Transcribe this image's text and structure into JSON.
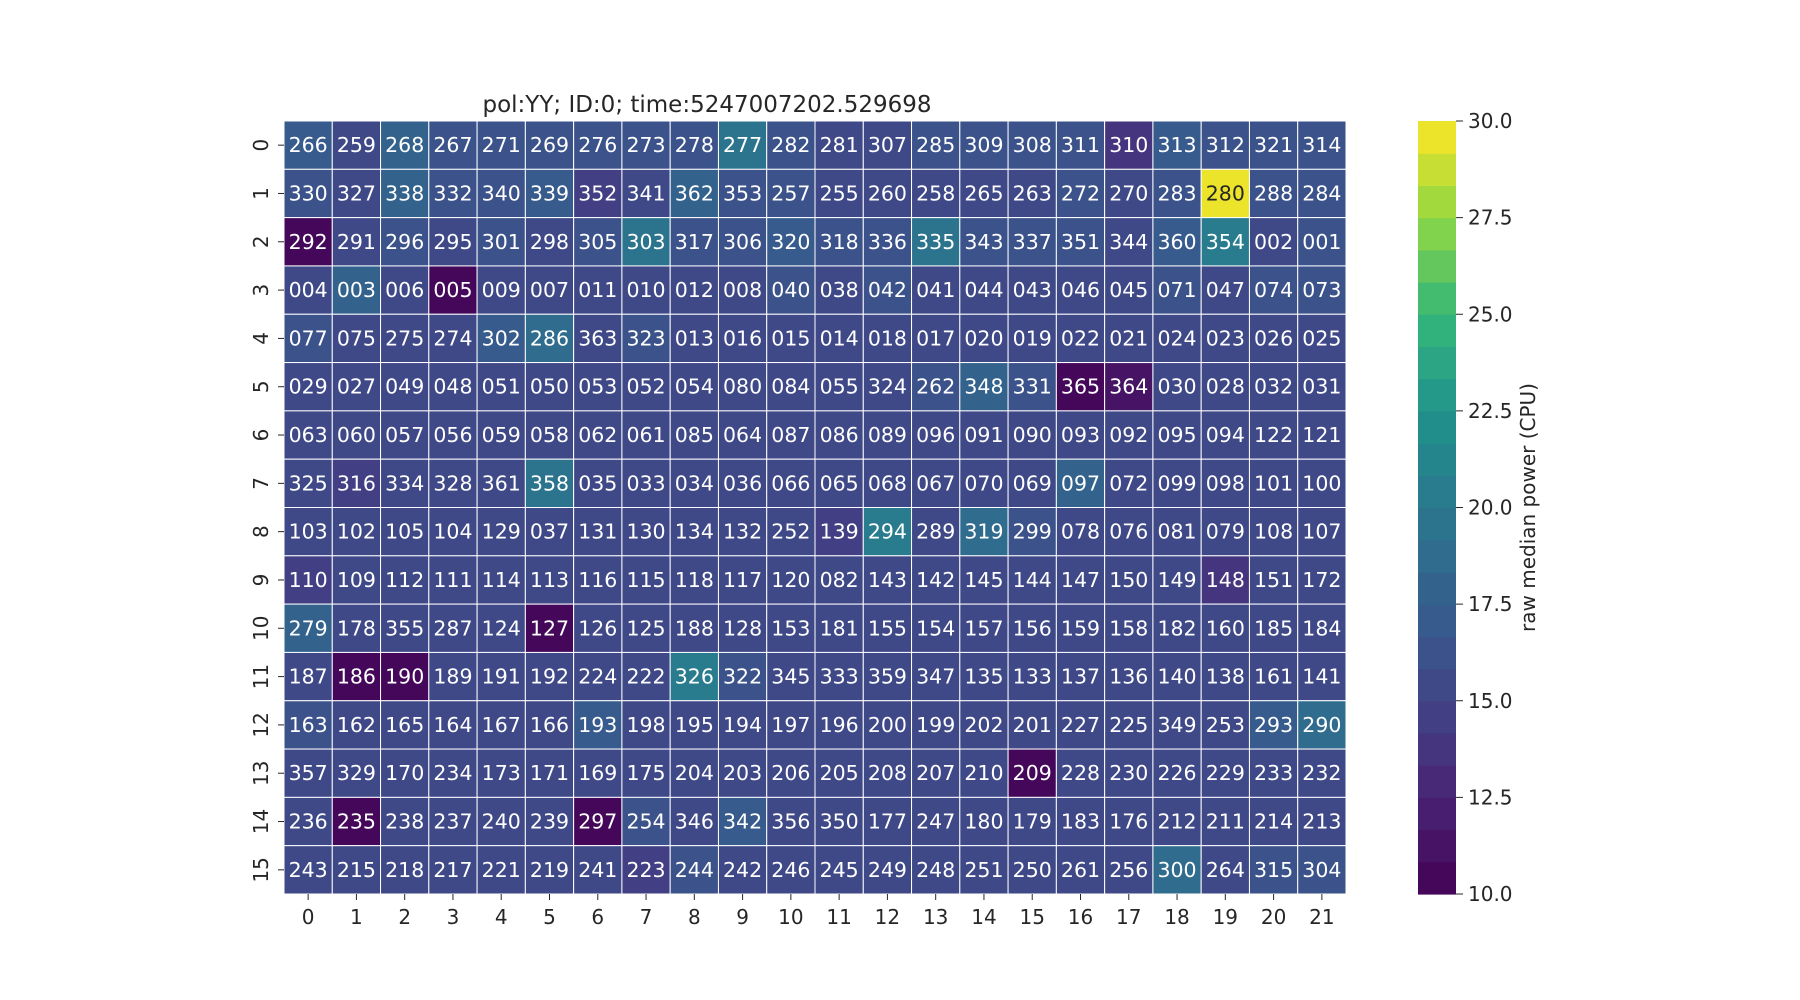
{
  "chart_data": {
    "type": "heatmap",
    "title": "pol:YY; ID:0; time:5247007202.529698",
    "colormap": "viridis",
    "x_categories": [
      "0",
      "1",
      "2",
      "3",
      "4",
      "5",
      "6",
      "7",
      "8",
      "9",
      "10",
      "11",
      "12",
      "13",
      "14",
      "15",
      "16",
      "17",
      "18",
      "19",
      "20",
      "21"
    ],
    "y_categories": [
      "0",
      "1",
      "2",
      "3",
      "4",
      "5",
      "6",
      "7",
      "8",
      "9",
      "10",
      "11",
      "12",
      "13",
      "14",
      "15"
    ],
    "labels": [
      [
        "266",
        "259",
        "268",
        "267",
        "271",
        "269",
        "276",
        "273",
        "278",
        "277",
        "282",
        "281",
        "307",
        "285",
        "309",
        "308",
        "311",
        "310",
        "313",
        "312",
        "321",
        "314"
      ],
      [
        "330",
        "327",
        "338",
        "332",
        "340",
        "339",
        "352",
        "341",
        "362",
        "353",
        "257",
        "255",
        "260",
        "258",
        "265",
        "263",
        "272",
        "270",
        "283",
        "280",
        "288",
        "284"
      ],
      [
        "292",
        "291",
        "296",
        "295",
        "301",
        "298",
        "305",
        "303",
        "317",
        "306",
        "320",
        "318",
        "336",
        "335",
        "343",
        "337",
        "351",
        "344",
        "360",
        "354",
        "002",
        "001"
      ],
      [
        "004",
        "003",
        "006",
        "005",
        "009",
        "007",
        "011",
        "010",
        "012",
        "008",
        "040",
        "038",
        "042",
        "041",
        "044",
        "043",
        "046",
        "045",
        "071",
        "047",
        "074",
        "073"
      ],
      [
        "077",
        "075",
        "275",
        "274",
        "302",
        "286",
        "363",
        "323",
        "013",
        "016",
        "015",
        "014",
        "018",
        "017",
        "020",
        "019",
        "022",
        "021",
        "024",
        "023",
        "026",
        "025"
      ],
      [
        "029",
        "027",
        "049",
        "048",
        "051",
        "050",
        "053",
        "052",
        "054",
        "080",
        "084",
        "055",
        "324",
        "262",
        "348",
        "331",
        "365",
        "364",
        "030",
        "028",
        "032",
        "031"
      ],
      [
        "063",
        "060",
        "057",
        "056",
        "059",
        "058",
        "062",
        "061",
        "085",
        "064",
        "087",
        "086",
        "089",
        "096",
        "091",
        "090",
        "093",
        "092",
        "095",
        "094",
        "122",
        "121"
      ],
      [
        "325",
        "316",
        "334",
        "328",
        "361",
        "358",
        "035",
        "033",
        "034",
        "036",
        "066",
        "065",
        "068",
        "067",
        "070",
        "069",
        "097",
        "072",
        "099",
        "098",
        "101",
        "100"
      ],
      [
        "103",
        "102",
        "105",
        "104",
        "129",
        "037",
        "131",
        "130",
        "134",
        "132",
        "252",
        "139",
        "294",
        "289",
        "319",
        "299",
        "078",
        "076",
        "081",
        "079",
        "108",
        "107"
      ],
      [
        "110",
        "109",
        "112",
        "111",
        "114",
        "113",
        "116",
        "115",
        "118",
        "117",
        "120",
        "082",
        "143",
        "142",
        "145",
        "144",
        "147",
        "150",
        "149",
        "148",
        "151",
        "172"
      ],
      [
        "279",
        "178",
        "355",
        "287",
        "124",
        "127",
        "126",
        "125",
        "188",
        "128",
        "153",
        "181",
        "155",
        "154",
        "157",
        "156",
        "159",
        "158",
        "182",
        "160",
        "185",
        "184"
      ],
      [
        "187",
        "186",
        "190",
        "189",
        "191",
        "192",
        "224",
        "222",
        "326",
        "322",
        "345",
        "333",
        "359",
        "347",
        "135",
        "133",
        "137",
        "136",
        "140",
        "138",
        "161",
        "141"
      ],
      [
        "163",
        "162",
        "165",
        "164",
        "167",
        "166",
        "193",
        "198",
        "195",
        "194",
        "197",
        "196",
        "200",
        "199",
        "202",
        "201",
        "227",
        "225",
        "349",
        "253",
        "293",
        "290"
      ],
      [
        "357",
        "329",
        "170",
        "234",
        "173",
        "171",
        "169",
        "175",
        "204",
        "203",
        "206",
        "205",
        "208",
        "207",
        "210",
        "209",
        "228",
        "230",
        "226",
        "229",
        "233",
        "232"
      ],
      [
        "236",
        "235",
        "238",
        "237",
        "240",
        "239",
        "297",
        "254",
        "346",
        "342",
        "356",
        "350",
        "177",
        "247",
        "180",
        "179",
        "183",
        "176",
        "212",
        "211",
        "214",
        "213"
      ],
      [
        "243",
        "215",
        "218",
        "217",
        "221",
        "219",
        "241",
        "223",
        "244",
        "242",
        "246",
        "245",
        "249",
        "248",
        "251",
        "250",
        "261",
        "256",
        "300",
        "264",
        "315",
        "304"
      ]
    ],
    "values": [
      [
        16.8,
        15.6,
        17.6,
        16.4,
        15.9,
        16.2,
        16.1,
        16.3,
        16.6,
        19.5,
        16.3,
        15.8,
        15.8,
        16.0,
        16.4,
        16.2,
        16.0,
        13.9,
        17.2,
        16.4,
        16.3,
        16.4
      ],
      [
        16.3,
        15.6,
        18.0,
        16.3,
        16.0,
        17.1,
        14.6,
        15.8,
        17.6,
        16.4,
        16.0,
        15.4,
        15.6,
        15.3,
        15.8,
        15.6,
        16.3,
        15.6,
        16.3,
        29.6,
        16.2,
        16.2
      ],
      [
        10.4,
        15.4,
        16.0,
        15.6,
        15.9,
        15.8,
        16.1,
        19.2,
        16.0,
        16.0,
        17.1,
        16.0,
        15.9,
        19.4,
        16.3,
        16.1,
        16.0,
        15.8,
        16.7,
        20.0,
        15.7,
        15.9
      ],
      [
        15.6,
        17.8,
        15.6,
        10.4,
        15.6,
        15.7,
        15.8,
        15.6,
        15.6,
        15.4,
        15.9,
        15.7,
        15.9,
        15.8,
        15.8,
        15.7,
        15.6,
        15.4,
        16.1,
        15.4,
        16.0,
        16.0
      ],
      [
        16.2,
        15.4,
        15.7,
        15.6,
        17.1,
        19.0,
        15.6,
        16.5,
        15.8,
        15.8,
        15.8,
        15.7,
        15.8,
        15.5,
        15.4,
        15.6,
        15.5,
        15.6,
        15.7,
        15.6,
        15.8,
        15.8
      ],
      [
        15.6,
        15.6,
        15.4,
        15.4,
        15.5,
        15.6,
        15.3,
        15.5,
        15.5,
        15.6,
        15.6,
        15.6,
        15.6,
        15.9,
        18.1,
        16.1,
        10.4,
        10.9,
        15.6,
        15.8,
        15.8,
        15.7
      ],
      [
        15.5,
        15.6,
        15.3,
        15.4,
        15.3,
        15.4,
        15.1,
        15.6,
        15.4,
        15.4,
        15.6,
        15.4,
        15.4,
        15.4,
        15.4,
        15.3,
        15.5,
        15.3,
        15.3,
        15.5,
        15.4,
        15.6
      ],
      [
        15.8,
        14.2,
        15.6,
        15.4,
        15.6,
        19.8,
        15.5,
        15.4,
        15.6,
        15.6,
        15.6,
        15.6,
        15.6,
        15.4,
        15.4,
        15.5,
        17.6,
        15.6,
        15.5,
        15.6,
        15.6,
        15.5
      ],
      [
        15.6,
        15.6,
        15.8,
        15.6,
        15.4,
        15.6,
        15.5,
        15.5,
        15.4,
        15.6,
        15.6,
        14.6,
        20.1,
        15.8,
        18.4,
        15.9,
        15.5,
        15.4,
        15.5,
        15.5,
        15.8,
        15.8
      ],
      [
        14.4,
        15.7,
        15.4,
        15.6,
        15.4,
        15.6,
        15.5,
        15.4,
        15.7,
        15.4,
        15.6,
        15.7,
        15.4,
        15.6,
        15.6,
        15.4,
        15.3,
        15.4,
        15.5,
        13.9,
        15.4,
        15.6
      ],
      [
        17.6,
        15.5,
        15.6,
        15.4,
        15.6,
        10.4,
        15.5,
        15.4,
        15.6,
        15.6,
        15.5,
        15.6,
        15.6,
        15.4,
        15.5,
        15.6,
        15.5,
        15.6,
        15.7,
        15.6,
        15.6,
        15.8
      ],
      [
        15.5,
        10.4,
        10.4,
        15.4,
        15.4,
        15.6,
        15.4,
        15.6,
        20.8,
        16.5,
        15.6,
        15.4,
        15.6,
        15.6,
        15.4,
        15.4,
        15.6,
        15.5,
        15.4,
        15.6,
        15.6,
        15.4
      ],
      [
        16.2,
        15.5,
        15.6,
        15.4,
        15.6,
        15.4,
        17.0,
        15.6,
        15.6,
        15.4,
        15.6,
        15.4,
        15.6,
        15.6,
        15.4,
        15.6,
        15.8,
        15.6,
        15.4,
        15.6,
        16.8,
        18.9
      ],
      [
        15.4,
        15.6,
        15.4,
        15.6,
        15.4,
        15.6,
        15.6,
        15.4,
        15.6,
        15.6,
        15.6,
        15.6,
        15.6,
        15.4,
        15.6,
        10.4,
        15.6,
        15.6,
        15.4,
        15.6,
        15.6,
        15.6
      ],
      [
        15.6,
        10.4,
        15.5,
        15.4,
        15.6,
        15.5,
        10.4,
        16.0,
        15.6,
        16.8,
        15.6,
        15.6,
        15.5,
        15.6,
        15.4,
        15.5,
        15.6,
        15.6,
        15.4,
        15.5,
        15.6,
        15.5
      ],
      [
        15.4,
        15.4,
        15.6,
        15.4,
        15.6,
        15.4,
        15.6,
        14.6,
        16.0,
        15.6,
        15.6,
        15.6,
        15.6,
        15.6,
        15.6,
        15.4,
        15.8,
        15.6,
        18.6,
        15.4,
        16.2,
        16.4
      ]
    ],
    "colorbar": {
      "label": "raw median power (CPU)",
      "min": 10.0,
      "max": 30.0,
      "levels": 24,
      "ticks": [
        "10.0",
        "12.5",
        "15.0",
        "17.5",
        "20.0",
        "22.5",
        "25.0",
        "27.5",
        "30.0"
      ]
    }
  }
}
